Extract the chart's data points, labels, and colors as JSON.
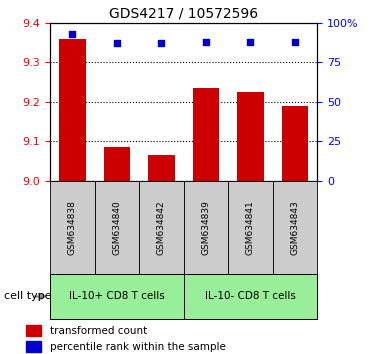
{
  "title": "GDS4217 / 10572596",
  "samples": [
    "GSM634838",
    "GSM634840",
    "GSM634842",
    "GSM634839",
    "GSM634841",
    "GSM634843"
  ],
  "bar_values": [
    9.36,
    9.085,
    9.065,
    9.235,
    9.225,
    9.19
  ],
  "blue_dot_values": [
    93,
    87,
    87,
    88,
    88,
    88
  ],
  "bar_color": "#cc0000",
  "dot_color": "#0000cc",
  "ylim_left": [
    9.0,
    9.4
  ],
  "ylim_right": [
    0,
    100
  ],
  "yticks_left": [
    9.0,
    9.1,
    9.2,
    9.3,
    9.4
  ],
  "yticks_right": [
    0,
    25,
    50,
    75,
    100
  ],
  "ytick_labels_right": [
    "0",
    "25",
    "50",
    "75",
    "100%"
  ],
  "group1_label": "IL-10+ CD8 T cells",
  "group2_label": "IL-10- CD8 T cells",
  "group_bg_color": "#99ee99",
  "sample_box_color": "#cccccc",
  "legend_bar_label": "transformed count",
  "legend_dot_label": "percentile rank within the sample",
  "cell_type_label": "cell type"
}
